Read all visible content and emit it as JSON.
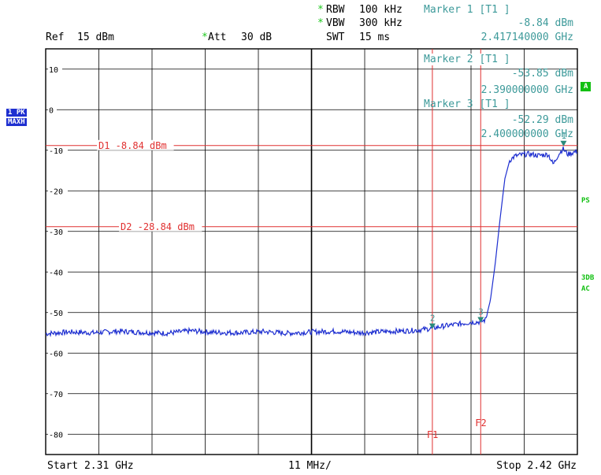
{
  "header": {
    "ref_label": "Ref",
    "ref_value": "15 dBm",
    "att_label": "Att",
    "att_value": "30 dB",
    "rbw_label": "RBW",
    "rbw_value": "100 kHz",
    "vbw_label": "VBW",
    "vbw_value": "300 kHz",
    "swt_label": "SWT",
    "swt_value": "15 ms",
    "star": "*"
  },
  "markers": [
    {
      "title": "Marker 1 [T1 ]",
      "level": "-8.84 dBm",
      "freq": "2.417140000 GHz"
    },
    {
      "title": "Marker 2 [T1 ]",
      "level": "-53.85 dBm",
      "freq": "2.390000000 GHz"
    },
    {
      "title": "Marker 3 [T1 ]",
      "level": "-52.29 dBm",
      "freq": "2.400000000 GHz"
    }
  ],
  "footer": {
    "start": "Start 2.31 GHz",
    "span": "11 MHz/",
    "stop": "Stop 2.42 GHz"
  },
  "side": {
    "trace_badge_1": "1 PK",
    "trace_badge_2": "MAXH",
    "a_badge": "A",
    "ps_label": "PS",
    "db3_label": "3DB",
    "ac_label": "AC"
  },
  "colors": {
    "trace": "#1e2fd0",
    "lines": "#e03030",
    "marker": "#2a8a7a",
    "grid": "#000000",
    "text_teal": "#3d9a9a"
  },
  "chart_data": {
    "type": "line",
    "xlim": [
      2.31,
      2.42
    ],
    "ylim": [
      -85,
      15
    ],
    "x_unit": "GHz",
    "y_unit": "dBm",
    "ytick_labels": [
      "10",
      "0",
      "-10",
      "-20",
      "-30",
      "-40",
      "-50",
      "-60",
      "-70",
      "-80"
    ],
    "ytick_values": [
      10,
      0,
      -10,
      -20,
      -30,
      -40,
      -50,
      -60,
      -70,
      -80
    ],
    "grid": true,
    "display_lines": [
      {
        "label": "D1",
        "text": "-8.84 dBm",
        "value": -8.84
      },
      {
        "label": "D2",
        "text": "-28.84 dBm",
        "value": -28.84
      }
    ],
    "freq_lines": [
      {
        "label": "F1",
        "value": 2.39
      },
      {
        "label": "F2",
        "value": 2.4
      }
    ],
    "marker_points": [
      {
        "label": "1",
        "x": 2.41714,
        "y": -8.84
      },
      {
        "label": "2",
        "x": 2.39,
        "y": -53.85
      },
      {
        "label": "3",
        "x": 2.4,
        "y": -52.29
      }
    ],
    "series": [
      {
        "x": [
          2.31,
          2.315,
          2.32,
          2.325,
          2.33,
          2.335,
          2.34,
          2.345,
          2.35,
          2.355,
          2.36,
          2.365,
          2.37,
          2.375,
          2.38,
          2.385,
          2.388,
          2.39,
          2.392,
          2.395,
          2.398,
          2.4,
          2.401,
          2.402,
          2.403,
          2.404,
          2.405,
          2.406,
          2.407,
          2.408,
          2.41,
          2.412,
          2.414,
          2.415,
          2.416,
          2.417,
          2.418,
          2.42
        ],
        "y": [
          -55.2,
          -54.8,
          -55.0,
          -54.6,
          -54.9,
          -55.1,
          -54.5,
          -54.9,
          -55.0,
          -54.7,
          -55.1,
          -54.8,
          -54.6,
          -55.0,
          -54.7,
          -54.5,
          -54.2,
          -53.9,
          -53.4,
          -52.9,
          -52.4,
          -52.3,
          -51.8,
          -47.0,
          -38.0,
          -27.0,
          -17.0,
          -12.5,
          -11.5,
          -11.2,
          -10.9,
          -11.3,
          -11.0,
          -13.5,
          -11.2,
          -9.6,
          -11.0,
          -10.2
        ]
      }
    ]
  }
}
